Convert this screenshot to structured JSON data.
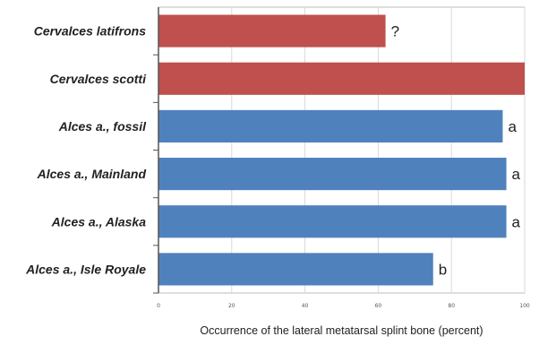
{
  "chart_data": {
    "type": "bar",
    "orientation": "horizontal",
    "categories": [
      "Cervalces latifrons",
      "Cervalces scotti",
      "Alces a., fossil",
      "Alces a., Mainland",
      "Alces a., Alaska",
      "Alces a., Isle Royale"
    ],
    "values": [
      62,
      100,
      94,
      95,
      95,
      75
    ],
    "bar_colors": [
      "#c0504d",
      "#c0504d",
      "#4f81bd",
      "#4f81bd",
      "#4f81bd",
      "#4f81bd"
    ],
    "data_labels": [
      "?",
      "",
      "a",
      "a",
      "a",
      "b"
    ],
    "xlabel": "Occurrence of the lateral metatarsal splint bone (percent)",
    "xlim": [
      0,
      100
    ],
    "xticks": [
      0,
      20,
      40,
      60,
      80,
      100
    ],
    "xtick_labels": [
      "0",
      "20",
      "40",
      "60",
      "80",
      "100"
    ],
    "grid": true,
    "legend": "none"
  }
}
